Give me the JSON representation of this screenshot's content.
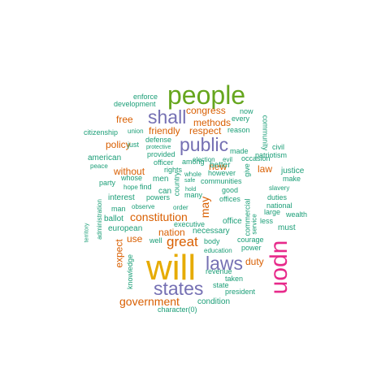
{
  "colors": {
    "teal": "#1b9e77",
    "orange": "#d95f02",
    "purple": "#7570b3",
    "magenta": "#e7298a",
    "green": "#66a61e",
    "gold": "#e6ab02",
    "background": "#ffffff"
  },
  "words": [
    {
      "text": "people",
      "color": "green"
    },
    {
      "text": "will",
      "color": "gold"
    },
    {
      "text": "upon",
      "color": "magenta"
    },
    {
      "text": "states",
      "color": "purple"
    },
    {
      "text": "shall",
      "color": "purple"
    },
    {
      "text": "public",
      "color": "purple"
    },
    {
      "text": "laws",
      "color": "purple"
    },
    {
      "text": "great",
      "color": "orange"
    },
    {
      "text": "constitution",
      "color": "orange"
    },
    {
      "text": "government",
      "color": "orange"
    },
    {
      "text": "may",
      "color": "orange"
    },
    {
      "text": "congress",
      "color": "orange"
    },
    {
      "text": "methods",
      "color": "orange"
    },
    {
      "text": "free",
      "color": "orange"
    },
    {
      "text": "friendly",
      "color": "orange"
    },
    {
      "text": "respect",
      "color": "orange"
    },
    {
      "text": "policy",
      "color": "orange"
    },
    {
      "text": "without",
      "color": "orange"
    },
    {
      "text": "new",
      "color": "orange"
    },
    {
      "text": "law",
      "color": "orange"
    },
    {
      "text": "nation",
      "color": "orange"
    },
    {
      "text": "use",
      "color": "orange"
    },
    {
      "text": "duty",
      "color": "orange"
    },
    {
      "text": "expect",
      "color": "orange"
    },
    {
      "text": "enforce",
      "color": "teal"
    },
    {
      "text": "development",
      "color": "teal"
    },
    {
      "text": "now",
      "color": "teal"
    },
    {
      "text": "community",
      "color": "teal"
    },
    {
      "text": "every",
      "color": "teal"
    },
    {
      "text": "reason",
      "color": "teal"
    },
    {
      "text": "made",
      "color": "teal"
    },
    {
      "text": "civil",
      "color": "teal"
    },
    {
      "text": "patriotism",
      "color": "teal"
    },
    {
      "text": "citizenship",
      "color": "teal"
    },
    {
      "text": "union",
      "color": "teal"
    },
    {
      "text": "defense",
      "color": "teal"
    },
    {
      "text": "just",
      "color": "teal"
    },
    {
      "text": "protective",
      "color": "teal"
    },
    {
      "text": "provided",
      "color": "teal"
    },
    {
      "text": "american",
      "color": "teal"
    },
    {
      "text": "peace",
      "color": "teal"
    },
    {
      "text": "officer",
      "color": "teal"
    },
    {
      "text": "among",
      "color": "teal"
    },
    {
      "text": "election",
      "color": "teal"
    },
    {
      "text": "evil",
      "color": "teal"
    },
    {
      "text": "occasion",
      "color": "teal"
    },
    {
      "text": "give",
      "color": "teal"
    },
    {
      "text": "justice",
      "color": "teal"
    },
    {
      "text": "whose",
      "color": "teal"
    },
    {
      "text": "men",
      "color": "teal"
    },
    {
      "text": "rights",
      "color": "teal"
    },
    {
      "text": "whole",
      "color": "teal"
    },
    {
      "text": "however",
      "color": "teal"
    },
    {
      "text": "better",
      "color": "teal"
    },
    {
      "text": "make",
      "color": "teal"
    },
    {
      "text": "slavery",
      "color": "teal"
    },
    {
      "text": "party",
      "color": "teal"
    },
    {
      "text": "hope",
      "color": "teal"
    },
    {
      "text": "find",
      "color": "teal"
    },
    {
      "text": "can",
      "color": "teal"
    },
    {
      "text": "safe",
      "color": "teal"
    },
    {
      "text": "hold",
      "color": "teal"
    },
    {
      "text": "communities",
      "color": "teal"
    },
    {
      "text": "country",
      "color": "teal"
    },
    {
      "text": "good",
      "color": "teal"
    },
    {
      "text": "administration",
      "color": "teal"
    },
    {
      "text": "interest",
      "color": "teal"
    },
    {
      "text": "powers",
      "color": "teal"
    },
    {
      "text": "many",
      "color": "teal"
    },
    {
      "text": "offices",
      "color": "teal"
    },
    {
      "text": "commercial",
      "color": "teal"
    },
    {
      "text": "duties",
      "color": "teal"
    },
    {
      "text": "man",
      "color": "teal"
    },
    {
      "text": "observe",
      "color": "teal"
    },
    {
      "text": "order",
      "color": "teal"
    },
    {
      "text": "national",
      "color": "teal"
    },
    {
      "text": "large",
      "color": "teal"
    },
    {
      "text": "territory",
      "color": "teal"
    },
    {
      "text": "ballot",
      "color": "teal"
    },
    {
      "text": "office",
      "color": "teal"
    },
    {
      "text": "service",
      "color": "teal"
    },
    {
      "text": "less",
      "color": "teal"
    },
    {
      "text": "wealth",
      "color": "teal"
    },
    {
      "text": "european",
      "color": "teal"
    },
    {
      "text": "executive",
      "color": "teal"
    },
    {
      "text": "necessary",
      "color": "teal"
    },
    {
      "text": "must",
      "color": "teal"
    },
    {
      "text": "well",
      "color": "teal"
    },
    {
      "text": "body",
      "color": "teal"
    },
    {
      "text": "power",
      "color": "teal"
    },
    {
      "text": "courage",
      "color": "teal"
    },
    {
      "text": "knowledge",
      "color": "teal"
    },
    {
      "text": "education",
      "color": "teal"
    },
    {
      "text": "revenue",
      "color": "teal"
    },
    {
      "text": "taken",
      "color": "teal"
    },
    {
      "text": "state",
      "color": "teal"
    },
    {
      "text": "president",
      "color": "teal"
    },
    {
      "text": "condition",
      "color": "teal"
    },
    {
      "text": "character(0)",
      "color": "teal"
    }
  ]
}
